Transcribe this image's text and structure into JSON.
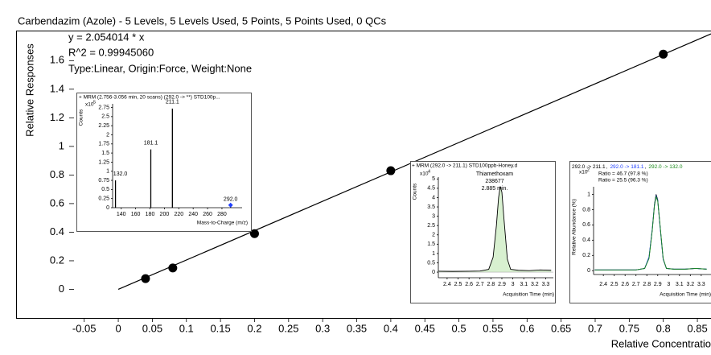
{
  "chart_data": [
    {
      "type": "scatter",
      "title": "Carbendazim (Azole) - 5 Levels, 5 Levels Used, 5 Points, 5 Points Used, 0 QCs",
      "annotations": [
        "y = 2.054014 * x",
        "R^2 = 0.99945060",
        "Type:Linear, Origin:Force, Weight:None"
      ],
      "ylabel": "Relative Responses",
      "xlabel": "Relative Concentratio",
      "x": [
        0.04,
        0.08,
        0.2,
        0.4,
        0.8
      ],
      "values": [
        0.075,
        0.15,
        0.39,
        0.83,
        1.645
      ],
      "color": "#000000",
      "fit_line": {
        "x": [
          0,
          0.87
        ],
        "values": [
          0,
          1.787
        ],
        "color": "#000000"
      },
      "xlim": [
        -0.15,
        0.87
      ],
      "ylim": [
        -0.2,
        1.81
      ],
      "xticks": [
        -0.05,
        0,
        0.05,
        0.1,
        0.15,
        0.2,
        0.25,
        0.3,
        0.35,
        0.4,
        0.45,
        0.5,
        0.55,
        0.6,
        0.65,
        0.7,
        0.75,
        0.8,
        0.85
      ],
      "yticks": [
        0,
        0.2,
        0.4,
        0.6,
        0.8,
        1,
        1.2,
        1.4,
        1.6
      ]
    },
    {
      "type": "bar",
      "title": "+ MRM (2.756-3.056 min, 20 scans) (292.0 -> **) STD100p...",
      "ylabel": "Counts",
      "y_scale_label": "x10",
      "y_scale_exp": "5",
      "xlabel": "Mass-to-Charge (m/z)",
      "x": [
        132.0,
        181.1,
        211.1,
        292.0
      ],
      "x_labels": [
        "132.0",
        "181.1",
        "211.1",
        "292.0"
      ],
      "values": [
        0.75,
        1.6,
        2.72,
        0.05
      ],
      "color": "#000000",
      "marker_index": 3,
      "marker_color": "#1f3fff",
      "xlim": [
        128,
        308
      ],
      "ylim": [
        0,
        2.85
      ],
      "xticks": [
        140,
        160,
        180,
        200,
        220,
        240,
        260,
        280
      ],
      "yticks": [
        0,
        0.25,
        0.5,
        0.75,
        1,
        1.25,
        1.5,
        1.75,
        2,
        2.25,
        2.5,
        2.75
      ]
    },
    {
      "type": "line",
      "title": "+ MRM (292.0 -> 211.1) STD100ppb-Honey.d",
      "ylabel": "Counts",
      "y_scale_label": "x10",
      "y_scale_exp": "4",
      "xlabel": "Acquisition Time (min)",
      "annotations": [
        "Thiamethoxam",
        "238677",
        "2.885 min."
      ],
      "x": [
        2.32,
        2.45,
        2.6,
        2.7,
        2.78,
        2.82,
        2.85,
        2.87,
        2.885,
        2.9,
        2.92,
        2.95,
        2.98,
        3.05,
        3.15,
        3.25,
        3.35
      ],
      "values": [
        0.05,
        0.04,
        0.05,
        0.06,
        0.15,
        0.8,
        2.5,
        4.0,
        4.6,
        4.3,
        2.8,
        0.7,
        0.15,
        0.1,
        0.08,
        0.12,
        0.1
      ],
      "color": "#000000",
      "fill": "#d8f0d0",
      "xlim": [
        2.32,
        3.37
      ],
      "ylim": [
        -0.3,
        5.1
      ],
      "xticks": [
        2.4,
        2.5,
        2.6,
        2.7,
        2.8,
        2.9,
        3,
        3.1,
        3.2,
        3.3
      ],
      "yticks": [
        0,
        0.5,
        1,
        1.5,
        2,
        2.5,
        3,
        3.5,
        4,
        4.5,
        5
      ]
    },
    {
      "type": "line",
      "separator": ",",
      "ylabel": "Relative Abundance (%)",
      "y_scale_label": "x10",
      "y_scale_exp": "2",
      "xlabel": "Acquisition Time (min)",
      "x": [
        2.32,
        2.45,
        2.6,
        2.7,
        2.78,
        2.82,
        2.85,
        2.87,
        2.885,
        2.9,
        2.92,
        2.95,
        2.98,
        3.05,
        3.15,
        3.25,
        3.35
      ],
      "series": [
        {
          "name": "292.0 -> 211.1",
          "color": "#000000",
          "values": [
            0.01,
            0.01,
            0.01,
            0.01,
            0.03,
            0.17,
            0.54,
            0.87,
            1.0,
            0.93,
            0.61,
            0.15,
            0.03,
            0.02,
            0.02,
            0.03,
            0.02
          ]
        },
        {
          "name": "292.0 -> 181.1",
          "color": "#1f3fff",
          "ratio_label": "Ratio = 46.7 (97.8 %)",
          "values": [
            0.01,
            0.01,
            0.01,
            0.01,
            0.03,
            0.18,
            0.55,
            0.86,
            0.98,
            0.92,
            0.6,
            0.15,
            0.03,
            0.02,
            0.02,
            0.03,
            0.02
          ]
        },
        {
          "name": "292.0 -> 132.0",
          "color": "#1a8a1a",
          "ratio_label": "Ratio = 25.5 (96.3 %)",
          "values": [
            0.01,
            0.01,
            0.01,
            0.01,
            0.03,
            0.16,
            0.53,
            0.85,
            0.97,
            0.91,
            0.62,
            0.16,
            0.03,
            0.02,
            0.02,
            0.03,
            0.02
          ]
        }
      ],
      "xlim": [
        2.31,
        3.39
      ],
      "ylim": [
        -0.05,
        1.1
      ],
      "xticks": [
        2.4,
        2.5,
        2.6,
        2.7,
        2.8,
        2.9,
        3,
        3.1,
        3.2,
        3.3
      ],
      "yticks": [
        0,
        0.2,
        0.4,
        0.6,
        0.8,
        1
      ]
    }
  ]
}
